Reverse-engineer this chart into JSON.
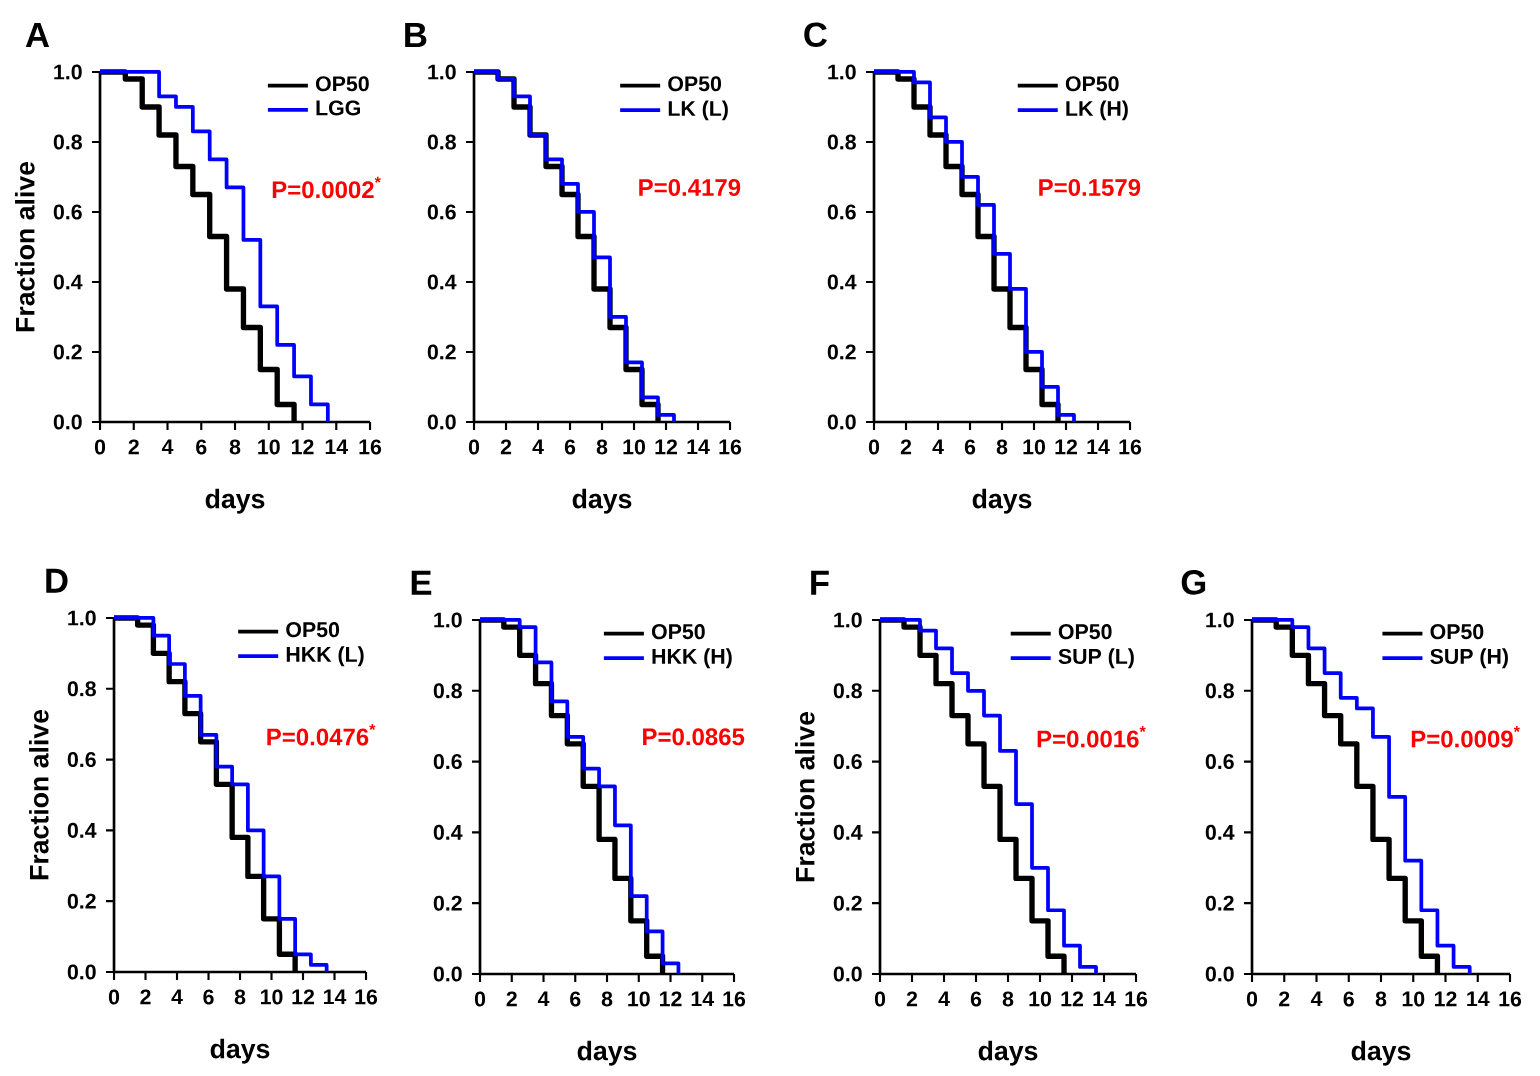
{
  "chart_data": [
    {
      "type": "step",
      "title": "A",
      "xlabel": "days",
      "ylabel": "Fraction alive",
      "xlim": [
        0,
        16
      ],
      "ylim": [
        0,
        1.0
      ],
      "xticks": [
        0,
        2,
        4,
        6,
        8,
        10,
        12,
        14,
        16
      ],
      "yticks": [
        {
          "value": 0,
          "label": "0.0"
        },
        {
          "value": 0.2,
          "label": "0.2"
        },
        {
          "value": 0.4,
          "label": "0.4"
        },
        {
          "value": 0.6,
          "label": "0.6"
        },
        {
          "value": 0.8,
          "label": "0.8"
        },
        {
          "value": 1.0,
          "label": "1.0"
        }
      ],
      "legend": "top right",
      "annotations": [
        "P=0.0002$^{*}$"
      ],
      "series": [
        {
          "name": "OP50",
          "color": "#000000",
          "x": [
            0,
            1.5,
            2.5,
            3.5,
            4.5,
            5.5,
            6.5,
            7.5,
            8.5,
            9.5,
            10.5,
            11.5
          ],
          "values": [
            1.0,
            0.98,
            0.9,
            0.82,
            0.73,
            0.65,
            0.53,
            0.38,
            0.27,
            0.15,
            0.05,
            0.0
          ]
        },
        {
          "name": "LGG",
          "color": "#0000ff",
          "x": [
            0,
            3.5,
            4.5,
            5.5,
            6.5,
            7.5,
            8.5,
            9.5,
            10.5,
            11.5,
            12.5,
            13.5
          ],
          "values": [
            1.0,
            0.93,
            0.9,
            0.83,
            0.75,
            0.67,
            0.52,
            0.33,
            0.22,
            0.13,
            0.05,
            0.0
          ]
        }
      ]
    },
    {
      "type": "step",
      "title": "B",
      "xlabel": "days",
      "xlim": [
        0,
        16
      ],
      "ylim": [
        0,
        1.0
      ],
      "xticks": [
        0,
        2,
        4,
        6,
        8,
        10,
        12,
        14,
        16
      ],
      "yticks": [
        {
          "value": 0,
          "label": "0.0"
        },
        {
          "value": 0.2,
          "label": "0.2"
        },
        {
          "value": 0.4,
          "label": "0.4"
        },
        {
          "value": 0.6,
          "label": "0.6"
        },
        {
          "value": 0.8,
          "label": "0.8"
        },
        {
          "value": 1.0,
          "label": "1.0"
        }
      ],
      "legend": "top right",
      "annotations": [
        "P=0.4179"
      ],
      "series": [
        {
          "name": "OP50",
          "color": "#000000",
          "x": [
            0,
            1.5,
            2.5,
            3.5,
            4.5,
            5.5,
            6.5,
            7.5,
            8.5,
            9.5,
            10.5,
            11.5
          ],
          "values": [
            1.0,
            0.98,
            0.9,
            0.82,
            0.73,
            0.65,
            0.53,
            0.38,
            0.27,
            0.15,
            0.05,
            0.0
          ]
        },
        {
          "name": "LK (L)",
          "color": "#0000ff",
          "x": [
            0,
            1.5,
            2.5,
            3.5,
            4.5,
            5.5,
            6.5,
            7.5,
            8.5,
            9.5,
            10.5,
            11.5,
            12.5
          ],
          "values": [
            1.0,
            0.98,
            0.93,
            0.82,
            0.75,
            0.68,
            0.6,
            0.47,
            0.3,
            0.17,
            0.07,
            0.02,
            0.0
          ]
        }
      ]
    },
    {
      "type": "step",
      "title": "C",
      "xlabel": "days",
      "xlim": [
        0,
        16
      ],
      "ylim": [
        0,
        1.0
      ],
      "xticks": [
        0,
        2,
        4,
        6,
        8,
        10,
        12,
        14,
        16
      ],
      "yticks": [
        {
          "value": 0,
          "label": "0.0"
        },
        {
          "value": 0.2,
          "label": "0.2"
        },
        {
          "value": 0.4,
          "label": "0.4"
        },
        {
          "value": 0.6,
          "label": "0.6"
        },
        {
          "value": 0.8,
          "label": "0.8"
        },
        {
          "value": 1.0,
          "label": "1.0"
        }
      ],
      "legend": "top right",
      "annotations": [
        "P=0.1579"
      ],
      "series": [
        {
          "name": "OP50",
          "color": "#000000",
          "x": [
            0,
            1.5,
            2.5,
            3.5,
            4.5,
            5.5,
            6.5,
            7.5,
            8.5,
            9.5,
            10.5,
            11.5
          ],
          "values": [
            1.0,
            0.98,
            0.9,
            0.82,
            0.73,
            0.65,
            0.53,
            0.38,
            0.27,
            0.15,
            0.05,
            0.0
          ]
        },
        {
          "name": "LK (H)",
          "color": "#0000ff",
          "x": [
            0,
            2.5,
            3.5,
            4.5,
            5.5,
            6.5,
            7.5,
            8.5,
            9.5,
            10.5,
            11.5,
            12.5
          ],
          "values": [
            1.0,
            0.97,
            0.87,
            0.8,
            0.7,
            0.62,
            0.48,
            0.38,
            0.2,
            0.1,
            0.02,
            0.0
          ]
        }
      ]
    },
    {
      "type": "step",
      "title": "D",
      "xlabel": "days",
      "ylabel": "Fraction alive",
      "xlim": [
        0,
        16
      ],
      "ylim": [
        0,
        1.0
      ],
      "xticks": [
        0,
        2,
        4,
        6,
        8,
        10,
        12,
        14,
        16
      ],
      "yticks": [
        {
          "value": 0,
          "label": "0.0"
        },
        {
          "value": 0.2,
          "label": "0.2"
        },
        {
          "value": 0.4,
          "label": "0.4"
        },
        {
          "value": 0.6,
          "label": "0.6"
        },
        {
          "value": 0.8,
          "label": "0.8"
        },
        {
          "value": 1.0,
          "label": "1.0"
        }
      ],
      "legend": "top right",
      "annotations": [
        "P=0.0476$^{*}$"
      ],
      "series": [
        {
          "name": "OP50",
          "color": "#000000",
          "x": [
            0,
            1.5,
            2.5,
            3.5,
            4.5,
            5.5,
            6.5,
            7.5,
            8.5,
            9.5,
            10.5,
            11.5
          ],
          "values": [
            1.0,
            0.98,
            0.9,
            0.82,
            0.73,
            0.65,
            0.53,
            0.38,
            0.27,
            0.15,
            0.05,
            0.0
          ]
        },
        {
          "name": "HKK (L)",
          "color": "#0000ff",
          "x": [
            0,
            2.5,
            3.5,
            4.5,
            5.5,
            6.5,
            7.5,
            8.5,
            9.5,
            10.5,
            11.5,
            12.5,
            13.5
          ],
          "values": [
            1.0,
            0.95,
            0.87,
            0.78,
            0.67,
            0.58,
            0.53,
            0.4,
            0.27,
            0.15,
            0.05,
            0.02,
            0.0
          ]
        }
      ]
    },
    {
      "type": "step",
      "title": "E",
      "xlabel": "days",
      "xlim": [
        0,
        16
      ],
      "ylim": [
        0,
        1.0
      ],
      "xticks": [
        0,
        2,
        4,
        6,
        8,
        10,
        12,
        14,
        16
      ],
      "yticks": [
        {
          "value": 0,
          "label": "0.0"
        },
        {
          "value": 0.2,
          "label": "0.2"
        },
        {
          "value": 0.4,
          "label": "0.4"
        },
        {
          "value": 0.6,
          "label": "0.6"
        },
        {
          "value": 0.8,
          "label": "0.8"
        },
        {
          "value": 1.0,
          "label": "1.0"
        }
      ],
      "legend": "top right",
      "annotations": [
        "P=0.0865"
      ],
      "series": [
        {
          "name": "OP50",
          "color": "#000000",
          "x": [
            0,
            1.5,
            2.5,
            3.5,
            4.5,
            5.5,
            6.5,
            7.5,
            8.5,
            9.5,
            10.5,
            11.5
          ],
          "values": [
            1.0,
            0.98,
            0.9,
            0.82,
            0.73,
            0.65,
            0.53,
            0.38,
            0.27,
            0.15,
            0.05,
            0.0
          ]
        },
        {
          "name": "HKK (H)",
          "color": "#0000ff",
          "x": [
            0,
            2.5,
            3.5,
            4.5,
            5.5,
            6.5,
            7.5,
            8.5,
            9.5,
            10.5,
            11.5,
            12.5
          ],
          "values": [
            1.0,
            0.98,
            0.88,
            0.77,
            0.67,
            0.58,
            0.53,
            0.42,
            0.22,
            0.12,
            0.03,
            0.0
          ]
        }
      ]
    },
    {
      "type": "step",
      "title": "F",
      "xlabel": "days",
      "ylabel": "Fraction alive",
      "xlim": [
        0,
        16
      ],
      "ylim": [
        0,
        1.0
      ],
      "xticks": [
        0,
        2,
        4,
        6,
        8,
        10,
        12,
        14,
        16
      ],
      "yticks": [
        {
          "value": 0,
          "label": "0.0"
        },
        {
          "value": 0.2,
          "label": "0.2"
        },
        {
          "value": 0.4,
          "label": "0.4"
        },
        {
          "value": 0.6,
          "label": "0.6"
        },
        {
          "value": 0.8,
          "label": "0.8"
        },
        {
          "value": 1.0,
          "label": "1.0"
        }
      ],
      "legend": "top right",
      "annotations": [
        "P=0.0016$^{*}$"
      ],
      "series": [
        {
          "name": "OP50",
          "color": "#000000",
          "x": [
            0,
            1.5,
            2.5,
            3.5,
            4.5,
            5.5,
            6.5,
            7.5,
            8.5,
            9.5,
            10.5,
            11.5
          ],
          "values": [
            1.0,
            0.98,
            0.9,
            0.82,
            0.73,
            0.65,
            0.53,
            0.38,
            0.27,
            0.15,
            0.05,
            0.0
          ]
        },
        {
          "name": "SUP (L)",
          "color": "#0000ff",
          "x": [
            0,
            2.5,
            3.5,
            4.5,
            5.5,
            6.5,
            7.5,
            8.5,
            9.5,
            10.5,
            11.5,
            12.5,
            13.5
          ],
          "values": [
            1.0,
            0.97,
            0.92,
            0.85,
            0.8,
            0.73,
            0.63,
            0.48,
            0.3,
            0.18,
            0.08,
            0.02,
            0.0
          ]
        }
      ]
    },
    {
      "type": "step",
      "title": "G",
      "xlabel": "days",
      "xlim": [
        0,
        16
      ],
      "ylim": [
        0,
        1.0
      ],
      "xticks": [
        0,
        2,
        4,
        6,
        8,
        10,
        12,
        14,
        16
      ],
      "yticks": [
        {
          "value": 0,
          "label": "0.0"
        },
        {
          "value": 0.2,
          "label": "0.2"
        },
        {
          "value": 0.4,
          "label": "0.4"
        },
        {
          "value": 0.6,
          "label": "0.6"
        },
        {
          "value": 0.8,
          "label": "0.8"
        },
        {
          "value": 1.0,
          "label": "1.0"
        }
      ],
      "legend": "top right",
      "annotations": [
        "P=0.0009$^{*}$"
      ],
      "series": [
        {
          "name": "OP50",
          "color": "#000000",
          "x": [
            0,
            1.5,
            2.5,
            3.5,
            4.5,
            5.5,
            6.5,
            7.5,
            8.5,
            9.5,
            10.5,
            11.5
          ],
          "values": [
            1.0,
            0.98,
            0.9,
            0.82,
            0.73,
            0.65,
            0.53,
            0.38,
            0.27,
            0.15,
            0.05,
            0.0
          ]
        },
        {
          "name": "SUP (H)",
          "color": "#0000ff",
          "x": [
            0,
            2.5,
            3.5,
            4.5,
            5.5,
            6.5,
            7.5,
            8.5,
            9.5,
            10.5,
            11.5,
            12.5,
            13.5
          ],
          "values": [
            1.0,
            0.98,
            0.92,
            0.85,
            0.78,
            0.75,
            0.67,
            0.5,
            0.32,
            0.18,
            0.08,
            0.02,
            0.0
          ]
        }
      ]
    }
  ]
}
